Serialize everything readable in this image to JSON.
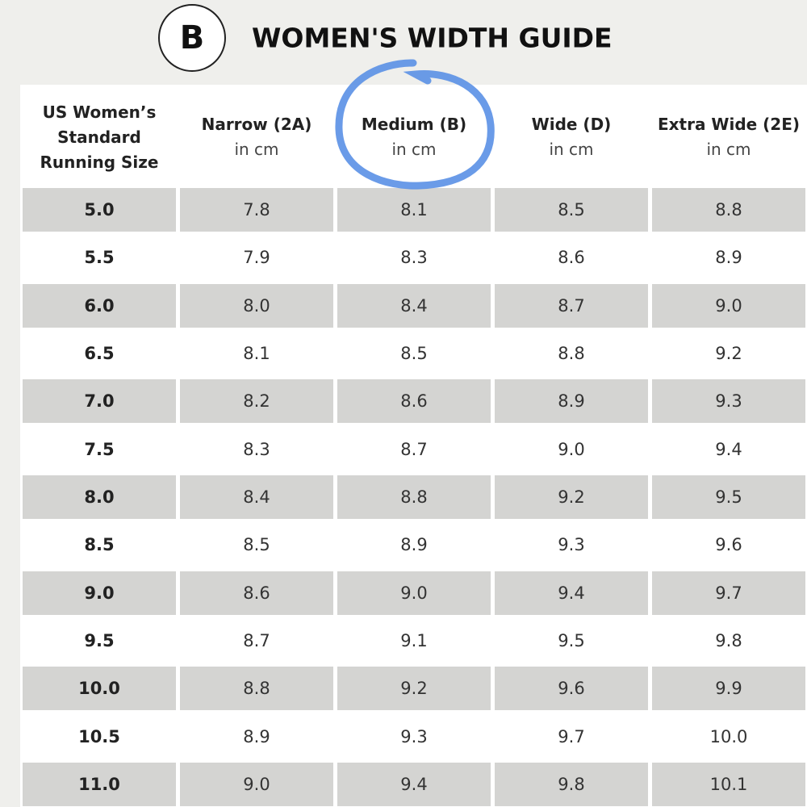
{
  "header": {
    "badge": "B",
    "title": "WOMEN'S WIDTH GUIDE"
  },
  "table": {
    "columns": [
      {
        "lines": [
          "US Women’s",
          "Standard",
          "Running Size"
        ]
      },
      {
        "label": "Narrow (2A)",
        "unit": "in cm"
      },
      {
        "label": "Medium (B)",
        "unit": "in cm"
      },
      {
        "label": "Wide (D)",
        "unit": "in cm"
      },
      {
        "label": "Extra Wide (2E)",
        "unit": "in cm"
      }
    ],
    "rows": [
      [
        "5.0",
        "7.8",
        "8.1",
        "8.5",
        "8.8"
      ],
      [
        "5.5",
        "7.9",
        "8.3",
        "8.6",
        "8.9"
      ],
      [
        "6.0",
        "8.0",
        "8.4",
        "8.7",
        "9.0"
      ],
      [
        "6.5",
        "8.1",
        "8.5",
        "8.8",
        "9.2"
      ],
      [
        "7.0",
        "8.2",
        "8.6",
        "8.9",
        "9.3"
      ],
      [
        "7.5",
        "8.3",
        "8.7",
        "9.0",
        "9.4"
      ],
      [
        "8.0",
        "8.4",
        "8.8",
        "9.2",
        "9.5"
      ],
      [
        "8.5",
        "8.5",
        "8.9",
        "9.3",
        "9.6"
      ],
      [
        "9.0",
        "8.6",
        "9.0",
        "9.4",
        "9.7"
      ],
      [
        "9.5",
        "8.7",
        "9.1",
        "9.5",
        "9.8"
      ],
      [
        "10.0",
        "8.8",
        "9.2",
        "9.6",
        "9.9"
      ],
      [
        "10.5",
        "8.9",
        "9.3",
        "9.7",
        "10.0"
      ],
      [
        "11.0",
        "9.0",
        "9.4",
        "9.8",
        "10.1"
      ]
    ]
  }
}
